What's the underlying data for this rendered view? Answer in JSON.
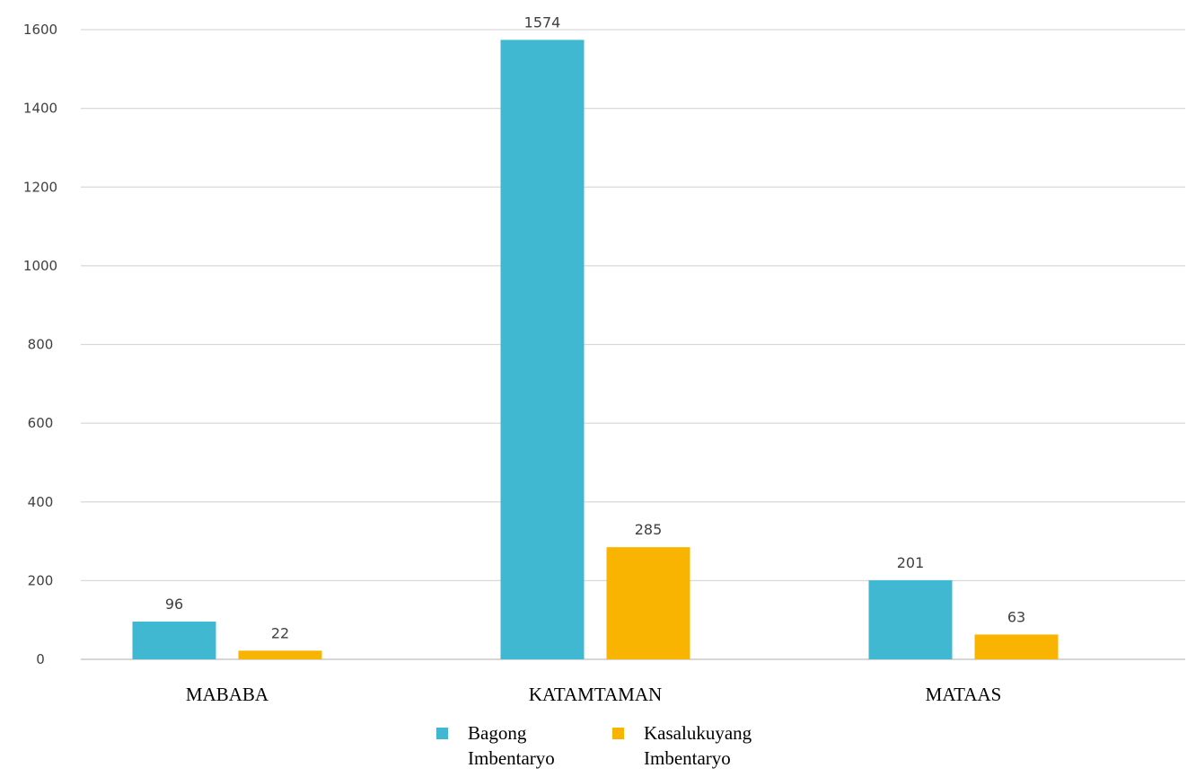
{
  "chart_data": {
    "type": "bar",
    "categories": [
      "MABABA",
      "KATAMTAMAN",
      "MATAAS"
    ],
    "series": [
      {
        "name": "Bagong Imbentaryo",
        "values": [
          96,
          1574,
          201
        ],
        "color": "#41B8D2"
      },
      {
        "name": "Kasalukuyang Imbentaryo",
        "values": [
          22,
          285,
          63
        ],
        "color": "#F8B400"
      }
    ],
    "ylim": [
      0,
      1600
    ],
    "yticks": [
      0,
      200,
      400,
      600,
      800,
      1000,
      1200,
      1400,
      1600
    ],
    "grid": true,
    "legend": "bottom",
    "title": "",
    "xlabel": "",
    "ylabel": ""
  }
}
